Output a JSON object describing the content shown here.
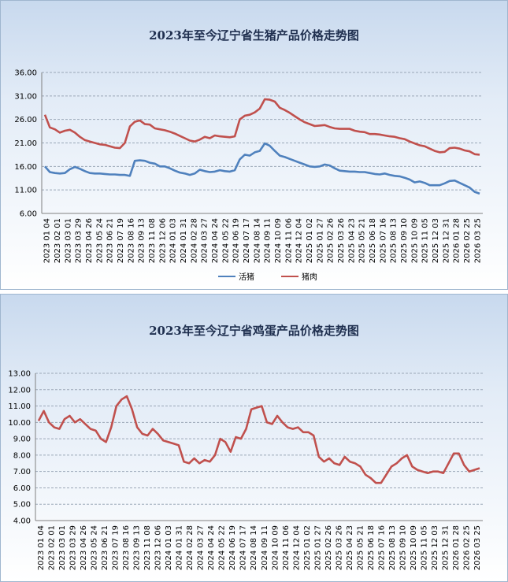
{
  "chart_data": [
    {
      "type": "line",
      "title": "2023年至今辽宁省生猪产品价格走势图",
      "ylim": [
        6,
        36
      ],
      "y_ticks": [
        "36.00",
        "31.00",
        "26.00",
        "21.00",
        "16.00",
        "11.00",
        "6.00"
      ],
      "x_ticks": [
        "2023 01 04",
        "2023 02 01",
        "2023 03 01",
        "2023 03 29",
        "2023 04 26",
        "2023 05 24",
        "2023 06 21",
        "2023 07 19",
        "2023 08 16",
        "2023 09 13",
        "2023 11 08",
        "2023 12 06",
        "2024 01 03",
        "2024 01 31",
        "2024 02 28",
        "2024 03 27",
        "2024 04 24",
        "2024 05 22",
        "2024 06 19",
        "2024 07 17",
        "2024 08 14",
        "2024 09 11",
        "2024 10 09",
        "2024 11 06",
        "2024 12 04",
        "2025 01 02",
        "2025 01 27",
        "2025 02 26",
        "2025 03 26",
        "2025 04 23",
        "2025 05 21",
        "2025 06 18",
        "2025 07 16",
        "2025 08 13",
        "2025 09 10",
        "2025 10 09",
        "2025 11 05",
        "2025 12 03",
        "2025 12 31",
        "2026 01 28",
        "2026 02 25",
        "2026 03 25"
      ],
      "grid": true,
      "legend_position": "bottom",
      "series": [
        {
          "name": "活猪",
          "color": "#4f81bd",
          "values": [
            16.0,
            14.8,
            14.6,
            14.5,
            14.6,
            15.4,
            15.9,
            15.5,
            15.0,
            14.6,
            14.5,
            14.5,
            14.4,
            14.3,
            14.3,
            14.2,
            14.2,
            14.0,
            17.2,
            17.3,
            17.2,
            16.8,
            16.6,
            16.0,
            16.0,
            15.6,
            15.1,
            14.7,
            14.5,
            14.2,
            14.5,
            15.3,
            15.0,
            14.8,
            14.9,
            15.2,
            15.0,
            14.9,
            15.2,
            17.5,
            18.5,
            18.3,
            19.0,
            19.3,
            20.9,
            20.4,
            19.3,
            18.3,
            18.0,
            17.6,
            17.2,
            16.8,
            16.4,
            16.0,
            15.9,
            16.0,
            16.4,
            16.2,
            15.6,
            15.1,
            15.0,
            14.9,
            14.9,
            14.8,
            14.8,
            14.6,
            14.4,
            14.3,
            14.5,
            14.2,
            14.0,
            13.9,
            13.6,
            13.2,
            12.6,
            12.8,
            12.5,
            12.0,
            12.0,
            12.0,
            12.4,
            12.9,
            13.0,
            12.5,
            12.0,
            11.5,
            10.6,
            10.2
          ]
        },
        {
          "name": "猪肉",
          "color": "#c0504d",
          "values": [
            27.0,
            24.3,
            23.9,
            23.2,
            23.6,
            23.8,
            23.2,
            22.3,
            21.6,
            21.3,
            21.0,
            20.7,
            20.6,
            20.3,
            20.0,
            19.9,
            21.0,
            24.5,
            25.5,
            25.8,
            25.0,
            24.9,
            24.1,
            23.9,
            23.7,
            23.4,
            23.0,
            22.5,
            22.0,
            21.5,
            21.3,
            21.7,
            22.3,
            22.0,
            22.6,
            22.4,
            22.3,
            22.2,
            22.4,
            26.0,
            26.8,
            27.0,
            27.5,
            28.3,
            30.3,
            30.2,
            29.8,
            28.5,
            28.0,
            27.4,
            26.7,
            26.0,
            25.4,
            25.0,
            24.6,
            24.7,
            24.8,
            24.4,
            24.1,
            24.0,
            24.0,
            24.0,
            23.6,
            23.4,
            23.3,
            22.9,
            22.9,
            22.8,
            22.6,
            22.4,
            22.3,
            22.0,
            21.8,
            21.3,
            20.9,
            20.5,
            20.3,
            19.8,
            19.3,
            19.0,
            19.1,
            19.9,
            20.0,
            19.8,
            19.4,
            19.2,
            18.6,
            18.5
          ]
        }
      ]
    },
    {
      "type": "line",
      "title": "2023年至今辽宁省鸡蛋产品价格走势图",
      "ylim": [
        4,
        13
      ],
      "y_ticks": [
        "13.00",
        "12.00",
        "11.00",
        "10.00",
        "9.00",
        "8.00",
        "7.00",
        "6.00",
        "5.00",
        "4.00"
      ],
      "x_ticks": [
        "2023 01 04",
        "2023 02 01",
        "2023 03 01",
        "2023 03 29",
        "2023 04 26",
        "2023 05 24",
        "2023 06 21",
        "2023 07 19",
        "2023 08 16",
        "2023 09 13",
        "2023 11 08",
        "2023 12 06",
        "2024 01 03",
        "2024 01 31",
        "2024 02 28",
        "2024 03 27",
        "2024 04 24",
        "2024 05 22",
        "2024 06 19",
        "2024 07 17",
        "2024 08 14",
        "2024 09 11",
        "2024 10 09",
        "2024 11 06",
        "2024 12 04",
        "2025 01 02",
        "2025 01 27",
        "2025 02 26",
        "2025 03 26",
        "2025 04 23",
        "2025 05 21",
        "2025 06 18",
        "2025 07 16",
        "2025 08 13",
        "2025 09 10",
        "2025 10 09",
        "2025 11 05",
        "2025 12 03",
        "2025 12 31",
        "2026 01 28",
        "2026 02 25",
        "2026 03 25"
      ],
      "grid": true,
      "series": [
        {
          "name": "",
          "color": "#c0504d",
          "values": [
            10.1,
            10.7,
            10.0,
            9.7,
            9.6,
            10.2,
            10.4,
            10.0,
            10.2,
            9.9,
            9.6,
            9.5,
            9.0,
            8.8,
            9.7,
            11.0,
            11.4,
            11.6,
            10.8,
            9.7,
            9.3,
            9.2,
            9.6,
            9.3,
            8.9,
            8.8,
            8.7,
            8.6,
            7.6,
            7.5,
            7.8,
            7.5,
            7.7,
            7.6,
            8.0,
            9.0,
            8.8,
            8.2,
            9.1,
            9.0,
            9.6,
            10.8,
            10.9,
            11.0,
            10.0,
            9.9,
            10.4,
            10.0,
            9.7,
            9.6,
            9.7,
            9.4,
            9.4,
            9.2,
            7.9,
            7.6,
            7.8,
            7.5,
            7.4,
            7.9,
            7.6,
            7.5,
            7.3,
            6.8,
            6.6,
            6.3,
            6.3,
            6.8,
            7.3,
            7.5,
            7.8,
            8.0,
            7.3,
            7.1,
            7.0,
            6.9,
            7.0,
            7.0,
            6.9,
            7.5,
            8.1,
            8.1,
            7.4,
            7.0,
            7.1,
            7.2
          ]
        }
      ]
    }
  ]
}
